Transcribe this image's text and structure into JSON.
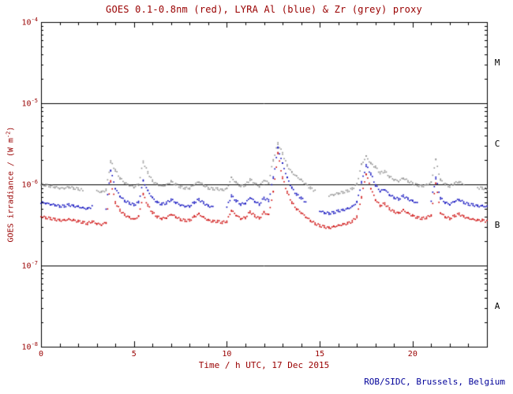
{
  "colors": {
    "background": "#ffffff",
    "frame": "#000000",
    "axis_text": "#990000",
    "credit": "#000099",
    "goes_red": "#cc0000",
    "lyra_al_blue": "#0000bb",
    "lyra_zr_grey": "#8f8f8f"
  },
  "chart_data": {
    "type": "scatter",
    "title": "GOES 0.1-0.8nm (red), LYRA Al (blue) & Zr (grey) proxy",
    "xlabel": "Time / h UTC, 17 Dec 2015",
    "ylabel": "GOES irradiance / (W m-2)",
    "ylabel_parts": {
      "prefix": "GOES irradiance / (W m",
      "sup": "-2",
      "suffix": ")"
    },
    "credit": "ROB/SIDC, Brussels, Belgium",
    "xlim": [
      0,
      24
    ],
    "ylim_exp": [
      -8,
      -4
    ],
    "x_major_ticks": [
      0,
      5,
      10,
      15,
      20
    ],
    "x_tick_labels": [
      "0",
      "5",
      "10",
      "15",
      "20"
    ],
    "x_minor_step": 1,
    "y_tick_exps": [
      -4,
      -5,
      -6,
      -7,
      -8
    ],
    "hlines": [
      1e-05,
      1e-06,
      1e-07
    ],
    "flare_classes": [
      {
        "label": "M",
        "level_exp": -4.5
      },
      {
        "label": "C",
        "level_exp": -5.5
      },
      {
        "label": "B",
        "level_exp": -6.5
      },
      {
        "label": "A",
        "level_exp": -7.5
      }
    ],
    "grid": false,
    "legend_position": "in-title",
    "x": [
      0,
      0.25,
      0.5,
      0.75,
      1,
      1.25,
      1.5,
      1.75,
      2,
      2.25,
      2.5,
      2.75,
      3,
      3.25,
      3.5,
      3.75,
      4,
      4.25,
      4.5,
      4.75,
      5,
      5.25,
      5.5,
      5.75,
      6,
      6.25,
      6.5,
      6.75,
      7,
      7.25,
      7.5,
      7.75,
      8,
      8.25,
      8.5,
      8.75,
      9,
      9.25,
      9.5,
      9.75,
      10,
      10.25,
      10.5,
      10.75,
      11,
      11.25,
      11.5,
      11.75,
      12,
      12.25,
      12.5,
      12.75,
      13,
      13.25,
      13.5,
      13.75,
      14,
      14.25,
      14.5,
      14.75,
      15,
      15.25,
      15.5,
      15.75,
      16,
      16.25,
      16.5,
      16.75,
      17,
      17.25,
      17.5,
      17.75,
      18,
      18.25,
      18.5,
      18.75,
      19,
      19.25,
      19.5,
      19.75,
      20,
      20.25,
      20.5,
      20.75,
      21,
      21.25,
      21.5,
      21.75,
      22,
      22.25,
      22.5,
      22.75,
      23,
      23.25,
      23.5,
      23.75,
      24
    ],
    "series": [
      {
        "name": "GOES 0.1-0.8nm",
        "color_key": "goes_red",
        "color": "#cc0000",
        "values": [
          4e-07,
          3.9e-07,
          3.8e-07,
          3.7e-07,
          3.6e-07,
          3.6e-07,
          3.7e-07,
          3.6e-07,
          3.5e-07,
          3.4e-07,
          3.3e-07,
          3.5e-07,
          3.3e-07,
          3.2e-07,
          3.4e-07,
          1.1e-06,
          6e-07,
          4.8e-07,
          4.2e-07,
          3.9e-07,
          3.7e-07,
          4e-07,
          7.5e-07,
          5.5e-07,
          4.5e-07,
          4e-07,
          3.8e-07,
          3.9e-07,
          4.3e-07,
          4e-07,
          3.7e-07,
          3.6e-07,
          3.6e-07,
          4e-07,
          4.3e-07,
          3.9e-07,
          3.6e-07,
          3.5e-07,
          3.5e-07,
          3.4e-07,
          3.5e-07,
          4.8e-07,
          4.2e-07,
          3.8e-07,
          3.9e-07,
          4.6e-07,
          4.1e-07,
          3.8e-07,
          4.5e-07,
          4.2e-07,
          8e-07,
          2.4e-06,
          1.2e-06,
          8e-07,
          6e-07,
          5e-07,
          4.5e-07,
          4e-07,
          3.6e-07,
          3.3e-07,
          3.1e-07,
          3e-07,
          2.9e-07,
          3e-07,
          3.1e-07,
          3.2e-07,
          3.3e-07,
          3.5e-07,
          4e-07,
          7e-07,
          1.35e-06,
          9e-07,
          6.5e-07,
          5.5e-07,
          5.8e-07,
          5e-07,
          4.6e-07,
          4.4e-07,
          4.8e-07,
          4.4e-07,
          4.1e-07,
          3.9e-07,
          3.8e-07,
          3.9e-07,
          4.2e-07,
          1.05e-06,
          4.5e-07,
          4e-07,
          3.8e-07,
          4.1e-07,
          4.3e-07,
          4e-07,
          3.8e-07,
          3.7e-07,
          3.6e-07,
          3.6e-07,
          3.5e-07
        ]
      },
      {
        "name": "LYRA Al proxy",
        "color_key": "lyra_al_blue",
        "color": "#0000bb",
        "values": [
          6e-07,
          5.9e-07,
          5.7e-07,
          5.6e-07,
          5.4e-07,
          5.4e-07,
          5.6e-07,
          5.4e-07,
          5.3e-07,
          5.1e-07,
          5e-07,
          5.3e-07,
          null,
          null,
          5.1e-07,
          1.5e-06,
          9e-07,
          7.2e-07,
          6.3e-07,
          5.9e-07,
          5.6e-07,
          6e-07,
          1.1e-06,
          8.3e-07,
          6.8e-07,
          6e-07,
          5.7e-07,
          5.9e-07,
          6.5e-07,
          6e-07,
          5.6e-07,
          5.4e-07,
          5.4e-07,
          6e-07,
          6.5e-07,
          5.9e-07,
          5.4e-07,
          5.3e-07,
          null,
          null,
          5.3e-07,
          7.2e-07,
          6.3e-07,
          5.7e-07,
          5.9e-07,
          6.9e-07,
          6.2e-07,
          5.7e-07,
          6.8e-07,
          6.3e-07,
          1.2e-06,
          2.8e-06,
          1.8e-06,
          1.2e-06,
          9e-07,
          7.5e-07,
          6.8e-07,
          6e-07,
          null,
          null,
          4.7e-07,
          4.5e-07,
          4.4e-07,
          4.5e-07,
          4.7e-07,
          4.8e-07,
          5e-07,
          5.3e-07,
          6e-07,
          1.05e-06,
          1.7e-06,
          1.35e-06,
          9.8e-07,
          8.3e-07,
          8.7e-07,
          7.5e-07,
          6.9e-07,
          6.6e-07,
          7.2e-07,
          6.6e-07,
          6.2e-07,
          5.9e-07,
          null,
          null,
          6.3e-07,
          1.2e-06,
          6.8e-07,
          6e-07,
          5.7e-07,
          6.2e-07,
          6.5e-07,
          6e-07,
          5.7e-07,
          5.6e-07,
          5.4e-07,
          5.4e-07,
          5.3e-07
        ]
      },
      {
        "name": "LYRA Zr proxy",
        "color_key": "lyra_zr_grey",
        "color": "#8f8f8f",
        "values": [
          1e-06,
          9.8e-07,
          9.5e-07,
          9.3e-07,
          9e-07,
          9e-07,
          9.3e-07,
          9e-07,
          8.8e-07,
          8.5e-07,
          null,
          null,
          8.3e-07,
          8e-07,
          8.5e-07,
          1.9e-06,
          1.5e-06,
          1.2e-06,
          1.05e-06,
          9.8e-07,
          9.3e-07,
          1e-06,
          1.9e-06,
          1.4e-06,
          1.1e-06,
          1e-06,
          9.5e-07,
          9.8e-07,
          1.08e-06,
          1e-06,
          9.3e-07,
          9e-07,
          9e-07,
          1e-06,
          1.08e-06,
          9.8e-07,
          9e-07,
          8.8e-07,
          8.8e-07,
          8.5e-07,
          8.8e-07,
          1.2e-06,
          1.05e-06,
          9.5e-07,
          9.8e-07,
          1.15e-06,
          1.03e-06,
          9.5e-07,
          1.13e-06,
          1.05e-06,
          2e-06,
          3.2e-06,
          2.4e-06,
          1.7e-06,
          1.4e-06,
          1.25e-06,
          1.13e-06,
          1e-06,
          9e-07,
          8.3e-07,
          null,
          null,
          7.3e-07,
          7.5e-07,
          7.8e-07,
          8e-07,
          8.3e-07,
          8.8e-07,
          1e-06,
          1.75e-06,
          2.2e-06,
          1.8e-06,
          1.63e-06,
          1.38e-06,
          1.45e-06,
          1.25e-06,
          1.15e-06,
          1.1e-06,
          1.2e-06,
          1.1e-06,
          1.03e-06,
          9.8e-07,
          9.5e-07,
          9.8e-07,
          1.05e-06,
          2e-06,
          1.13e-06,
          1e-06,
          9.5e-07,
          1.03e-06,
          1.08e-06,
          1e-06,
          null,
          null,
          9e-07,
          9e-07,
          8.8e-07
        ]
      }
    ]
  }
}
